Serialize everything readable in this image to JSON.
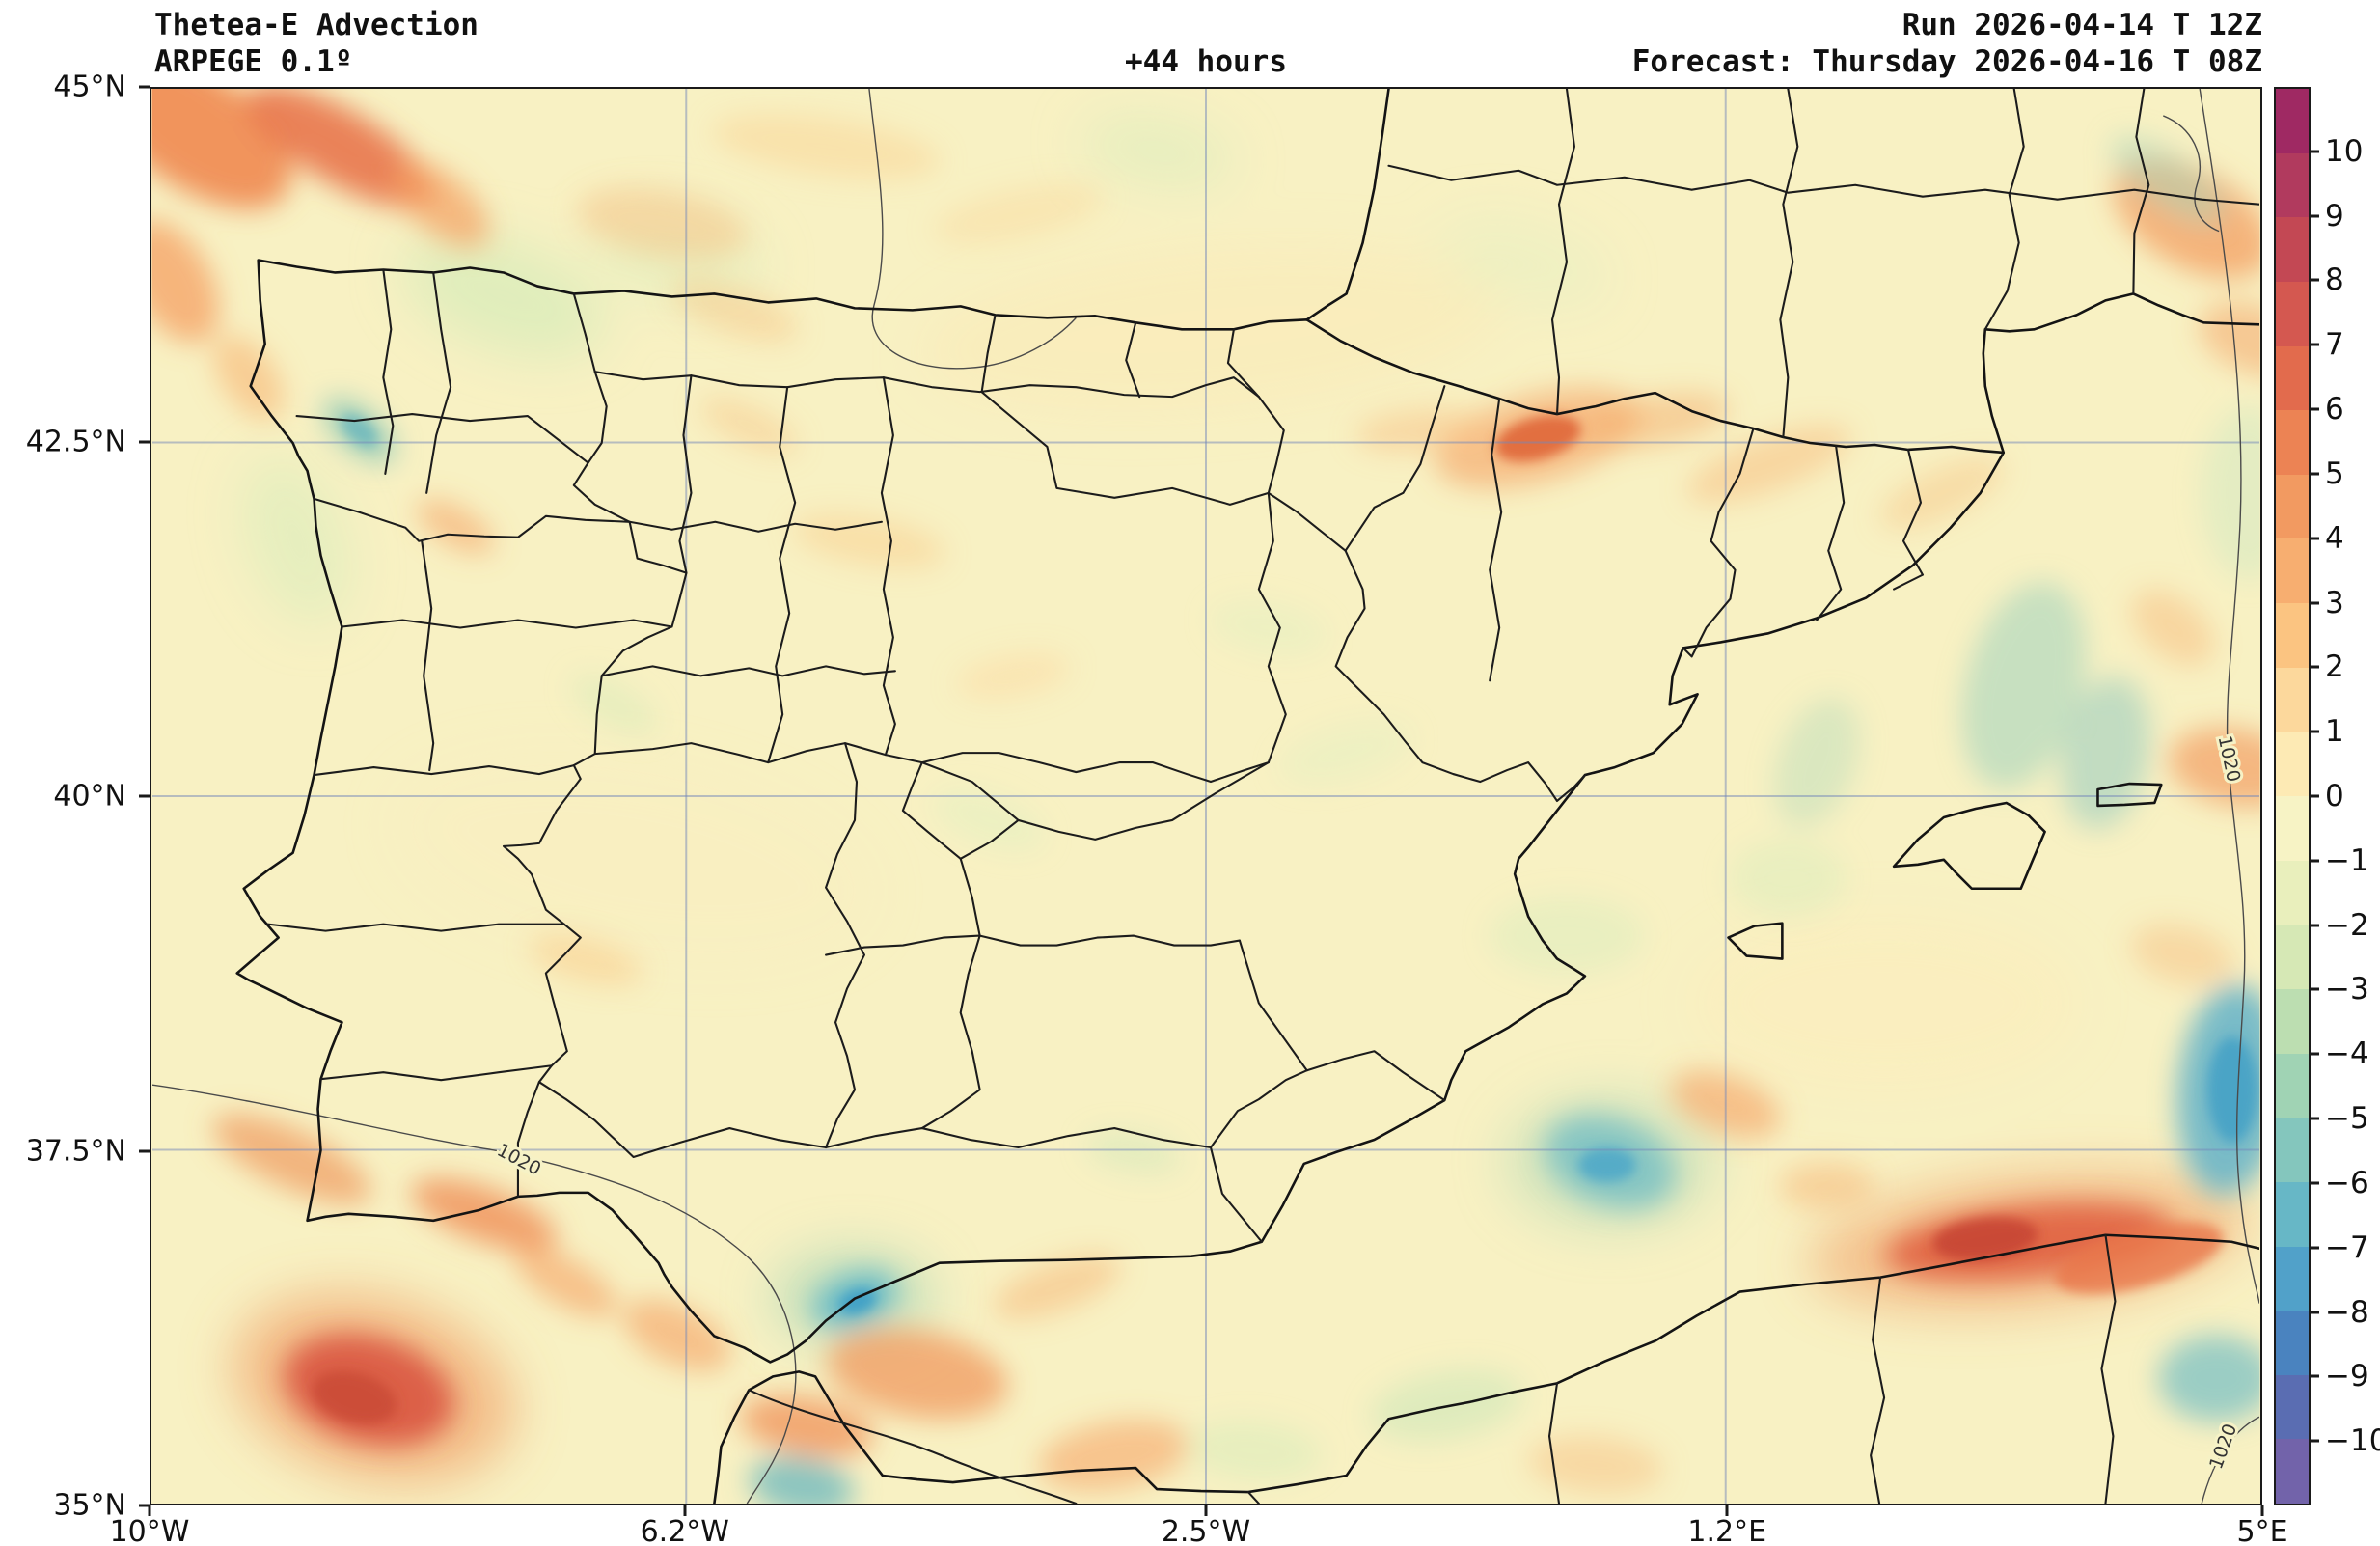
{
  "header": {
    "title_line1": "Thetea-E Advection",
    "title_line2": "ARPEGE 0.1º",
    "hour_offset": "+44 hours",
    "run_line": "Run 2026-04-14 T 12Z",
    "forecast_line": "Forecast: Thursday 2026-04-16 T 08Z"
  },
  "map": {
    "contour_label": "1020"
  },
  "chart_data": {
    "type": "heatmap",
    "title": "Thetea-E Advection",
    "model": "ARPEGE 0.1º",
    "lead_time": "+44 hours",
    "run": "2026-04-14 T 12Z",
    "forecast_valid": "Thursday 2026-04-16 T 08Z",
    "grid": true,
    "extent": {
      "lon_min_deg": -10,
      "lon_max_deg": 5,
      "lat_min_deg": 35,
      "lat_max_deg": 45
    },
    "x_axis": {
      "ticks": [
        {
          "label": "10°W",
          "pos": 0
        },
        {
          "label": "6.2°W",
          "pos": 25.333
        },
        {
          "label": "2.5°W",
          "pos": 50
        },
        {
          "label": "1.2°E",
          "pos": 74.667
        },
        {
          "label": "5°E",
          "pos": 100
        }
      ]
    },
    "y_axis": {
      "ticks": [
        {
          "label": "45°N",
          "pos": 0
        },
        {
          "label": "42.5°N",
          "pos": 25
        },
        {
          "label": "40°N",
          "pos": 50
        },
        {
          "label": "37.5°N",
          "pos": 75
        },
        {
          "label": "35°N",
          "pos": 100
        }
      ]
    },
    "colorbar": {
      "orientation": "vertical",
      "position": "right",
      "tick_labels": [
        "10",
        "9",
        "8",
        "7",
        "6",
        "5",
        "4",
        "3",
        "2",
        "1",
        "0",
        "−1",
        "−2",
        "−3",
        "−4",
        "−5",
        "−6",
        "−7",
        "−8",
        "−9",
        "−10"
      ],
      "segment_colors_top_to_bottom": [
        "#9f2963",
        "#b13a5e",
        "#c34854",
        "#d45850",
        "#e26b4d",
        "#ec8354",
        "#f29a61",
        "#f7ae70",
        "#fbc481",
        "#fcd89c",
        "#fdeab4",
        "#f7f3c5",
        "#e9efbc",
        "#d6e8b5",
        "#bcdeb1",
        "#a0d3b4",
        "#84c6bd",
        "#67b7c6",
        "#51a1c9",
        "#4a83bf",
        "#5a6db2",
        "#7263aa"
      ]
    },
    "isobar_contour_label": "1020"
  }
}
